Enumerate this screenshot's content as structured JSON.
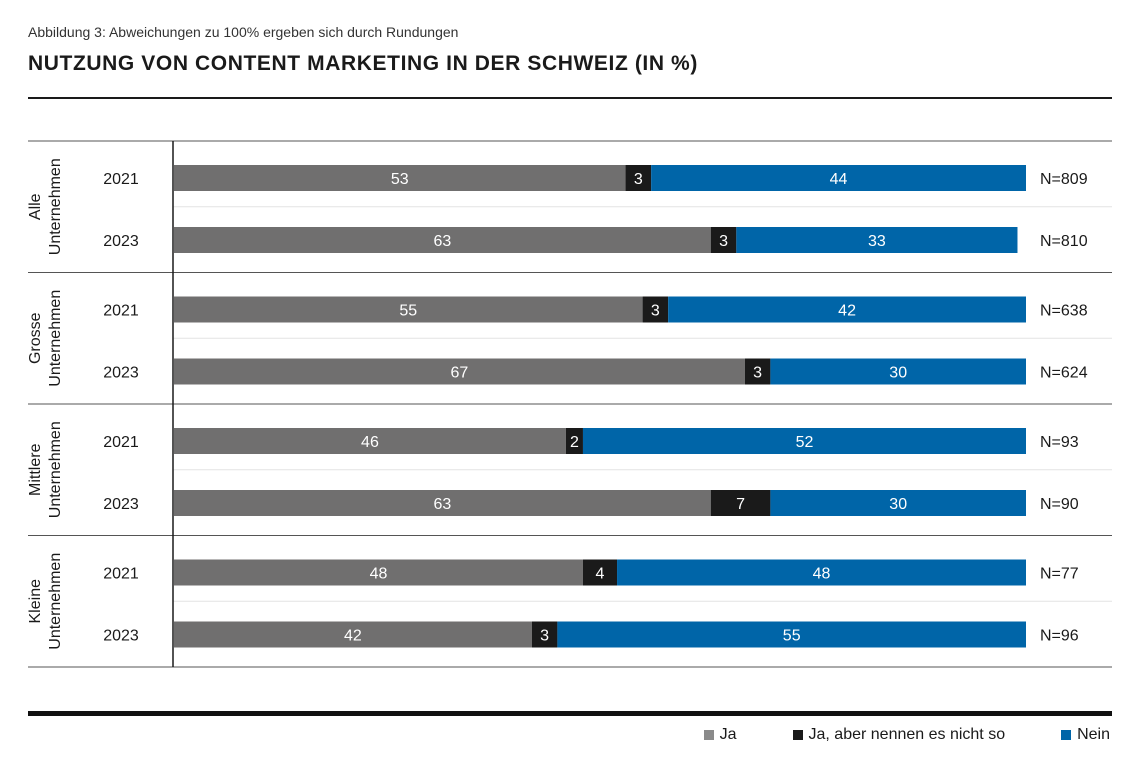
{
  "caption": "Abbildung 3: Abweichungen zu 100% ergeben sich durch Rundungen",
  "title": "NUTZUNG VON CONTENT MARKETING IN DER SCHWEIZ (IN %)",
  "colors": {
    "ja": "#706f6f",
    "ja_aber": "#1a1a1a",
    "nein": "#0065a8"
  },
  "legend": [
    {
      "label": "Ja",
      "key": "ja"
    },
    {
      "label": "Ja, aber nennen es nicht so",
      "key": "ja_aber"
    },
    {
      "label": "Nein",
      "key": "nein"
    }
  ],
  "chart_data": {
    "type": "bar",
    "orientation": "horizontal",
    "stacked": true,
    "title": "NUTZUNG VON CONTENT MARKETING IN DER SCHWEIZ (IN %)",
    "xlim": [
      0,
      100
    ],
    "series_names": [
      "Ja",
      "Ja, aber nennen es nicht so",
      "Nein"
    ],
    "groups": [
      {
        "label": [
          "Alle",
          "Unternehmen"
        ],
        "rows": [
          {
            "year": "2021",
            "values": [
              53,
              3,
              44
            ],
            "n": "N=809"
          },
          {
            "year": "2023",
            "values": [
              63,
              3,
              33
            ],
            "n": "N=810"
          }
        ]
      },
      {
        "label": [
          "Grosse",
          "Unternehmen"
        ],
        "rows": [
          {
            "year": "2021",
            "values": [
              55,
              3,
              42
            ],
            "n": "N=638"
          },
          {
            "year": "2023",
            "values": [
              67,
              3,
              30
            ],
            "n": "N=624"
          }
        ]
      },
      {
        "label": [
          "Mittlere",
          "Unternehmen"
        ],
        "rows": [
          {
            "year": "2021",
            "values": [
              46,
              2,
              52
            ],
            "n": "N=93"
          },
          {
            "year": "2023",
            "values": [
              63,
              7,
              30
            ],
            "n": "N=90"
          }
        ]
      },
      {
        "label": [
          "Kleine",
          "Unternehmen"
        ],
        "rows": [
          {
            "year": "2021",
            "values": [
              48,
              4,
              48
            ],
            "n": "N=77"
          },
          {
            "year": "2023",
            "values": [
              42,
              3,
              55
            ],
            "n": "N=96"
          }
        ]
      }
    ]
  }
}
